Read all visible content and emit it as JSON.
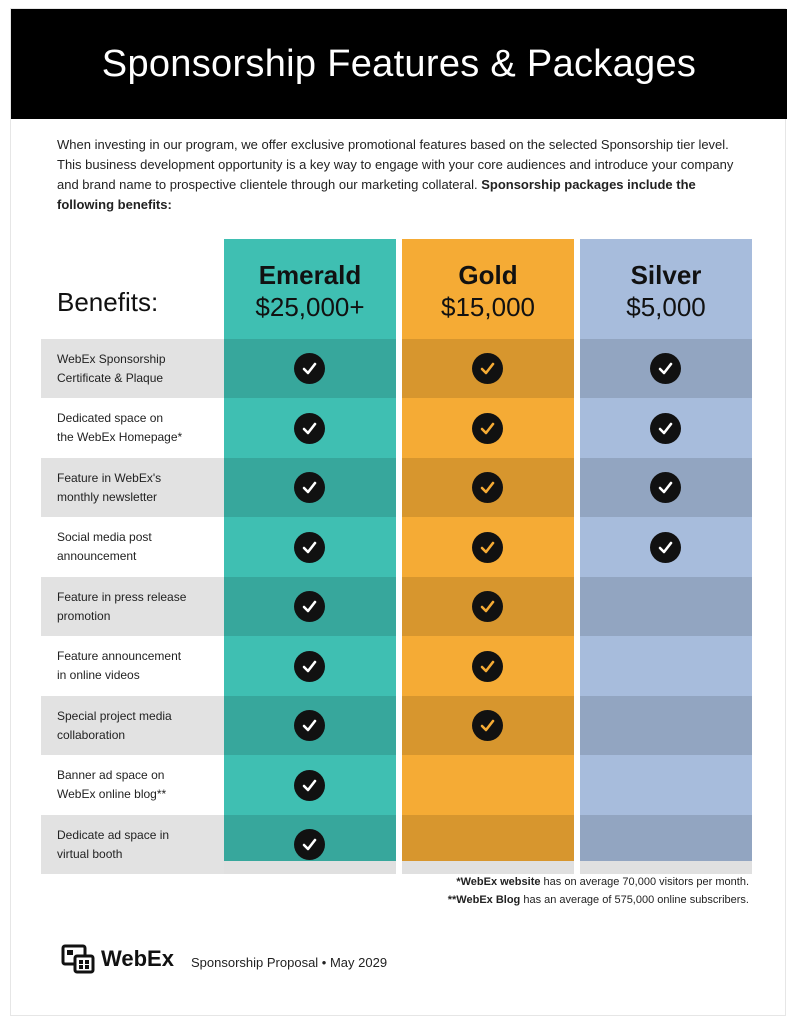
{
  "header": {
    "title": "Sponsorship Features & Packages"
  },
  "intro": {
    "text": "When investing in our program, we offer exclusive promotional features based on the selected Sponsorship tier level. This business development opportunity is a key way to engage with your core audiences and introduce your company and brand name to prospective clientele through our marketing collateral. ",
    "bold": "Sponsorship packages include the following benefits:"
  },
  "table": {
    "benefits_heading": "Benefits:",
    "tiers": [
      {
        "name": "Emerald",
        "price": "$25,000+",
        "color": "#3fbfb2"
      },
      {
        "name": "Gold",
        "price": "$15,000",
        "color": "#f5ab35"
      },
      {
        "name": "Silver",
        "price": "$5,000",
        "color": "#a7bcdc"
      }
    ],
    "rows": [
      {
        "line1": "WebEx Sponsorship",
        "line2": "Certificate & Plaque",
        "emerald": true,
        "gold": true,
        "silver": true
      },
      {
        "line1": "Dedicated space on",
        "line2": "the WebEx Homepage*",
        "emerald": true,
        "gold": true,
        "silver": true
      },
      {
        "line1": "Feature in WebEx's",
        "line2": "monthly newsletter",
        "emerald": true,
        "gold": true,
        "silver": true
      },
      {
        "line1": "Social media post",
        "line2": "announcement",
        "emerald": true,
        "gold": true,
        "silver": true
      },
      {
        "line1": "Feature in press release",
        "line2": "promotion",
        "emerald": true,
        "gold": true,
        "silver": false
      },
      {
        "line1": "Feature announcement",
        "line2": "in online videos",
        "emerald": true,
        "gold": true,
        "silver": false
      },
      {
        "line1": "Special project media",
        "line2": "collaboration",
        "emerald": true,
        "gold": true,
        "silver": false
      },
      {
        "line1": "Banner ad space on",
        "line2": "WebEx online blog**",
        "emerald": true,
        "gold": false,
        "silver": false
      },
      {
        "line1": "Dedicate ad space in",
        "line2": "virtual booth",
        "emerald": true,
        "gold": false,
        "silver": false
      }
    ]
  },
  "footnotes": {
    "note1_bold": "*WebEx website",
    "note1_rest": " has on average 70,000 visitors per month.",
    "note2_bold": "**WebEx Blog",
    "note2_rest": " has an average of 575,000 online subscribers."
  },
  "footer": {
    "brand": "WebEx",
    "brand_icon": "webex-logo-icon",
    "proposal": "Sponsorship Proposal • May 2029"
  },
  "colors": {
    "check_fill": "#111111",
    "check_mark_default": "#ffffff",
    "gold_check_mark": "#f5ab35",
    "emerald_check_mark": "#3fbfb2"
  }
}
